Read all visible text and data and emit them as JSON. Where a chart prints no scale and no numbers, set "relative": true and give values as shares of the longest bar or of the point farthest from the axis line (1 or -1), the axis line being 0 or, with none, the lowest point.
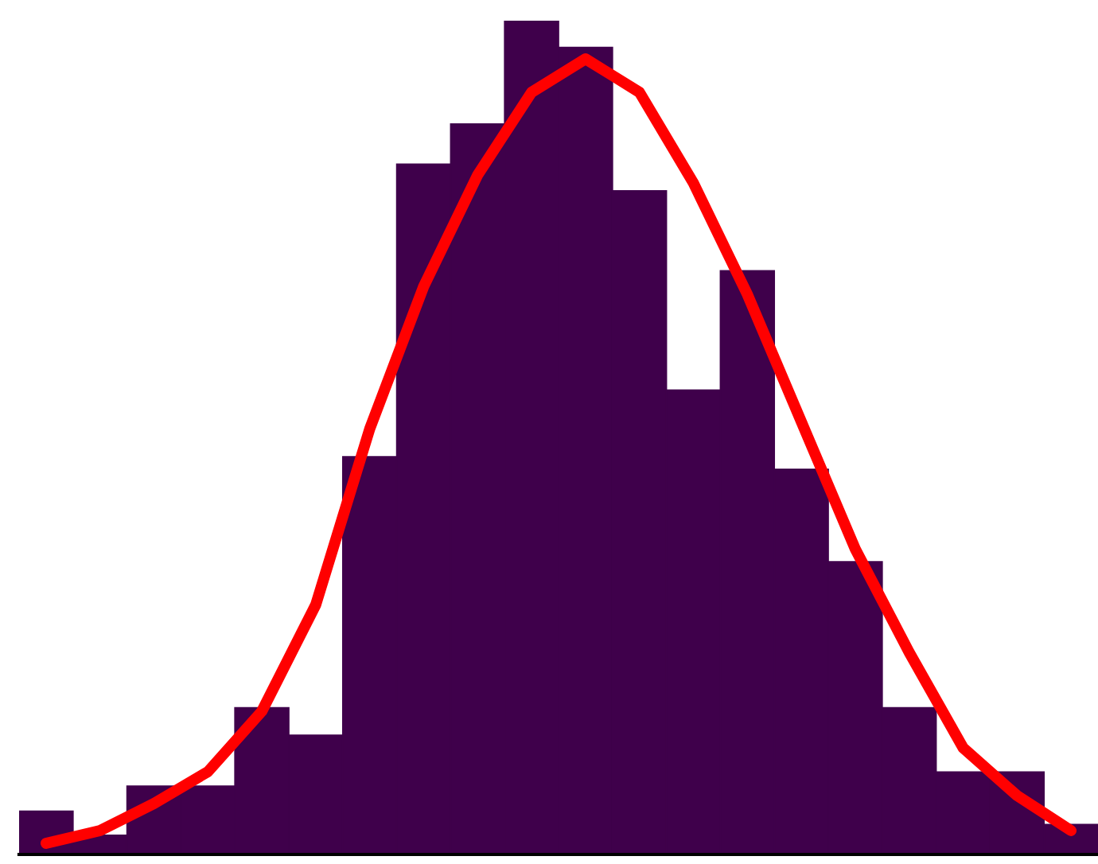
{
  "chart_data": [
    {
      "type": "bar",
      "relative": true,
      "color": "#3f004b",
      "categories": [
        null,
        null,
        null,
        null,
        null,
        null,
        null,
        null,
        null,
        null,
        null,
        null,
        null,
        null,
        null,
        null,
        null,
        null,
        null,
        null
      ],
      "values": [
        0.052,
        0.023,
        0.082,
        0.082,
        0.176,
        0.143,
        0.477,
        0.828,
        0.876,
        1,
        0.968,
        0.796,
        0.557,
        0.7,
        0.462,
        0.351,
        0.176,
        0.099,
        0.099,
        0.036
      ]
    },
    {
      "type": "line",
      "relative": true,
      "color": "#ff0000",
      "marker": "none",
      "line_style": "solid",
      "categories": [
        null,
        null,
        null,
        null,
        null,
        null,
        null,
        null,
        null,
        null,
        null,
        null,
        null,
        null,
        null,
        null,
        null,
        null,
        null,
        null
      ],
      "values": [
        0.014,
        0.03,
        0.064,
        0.104,
        0.18,
        0.314,
        0.535,
        0.714,
        0.854,
        0.958,
        1,
        0.958,
        0.844,
        0.704,
        0.544,
        0.384,
        0.254,
        0.134,
        0.074,
        0.03
      ]
    }
  ]
}
